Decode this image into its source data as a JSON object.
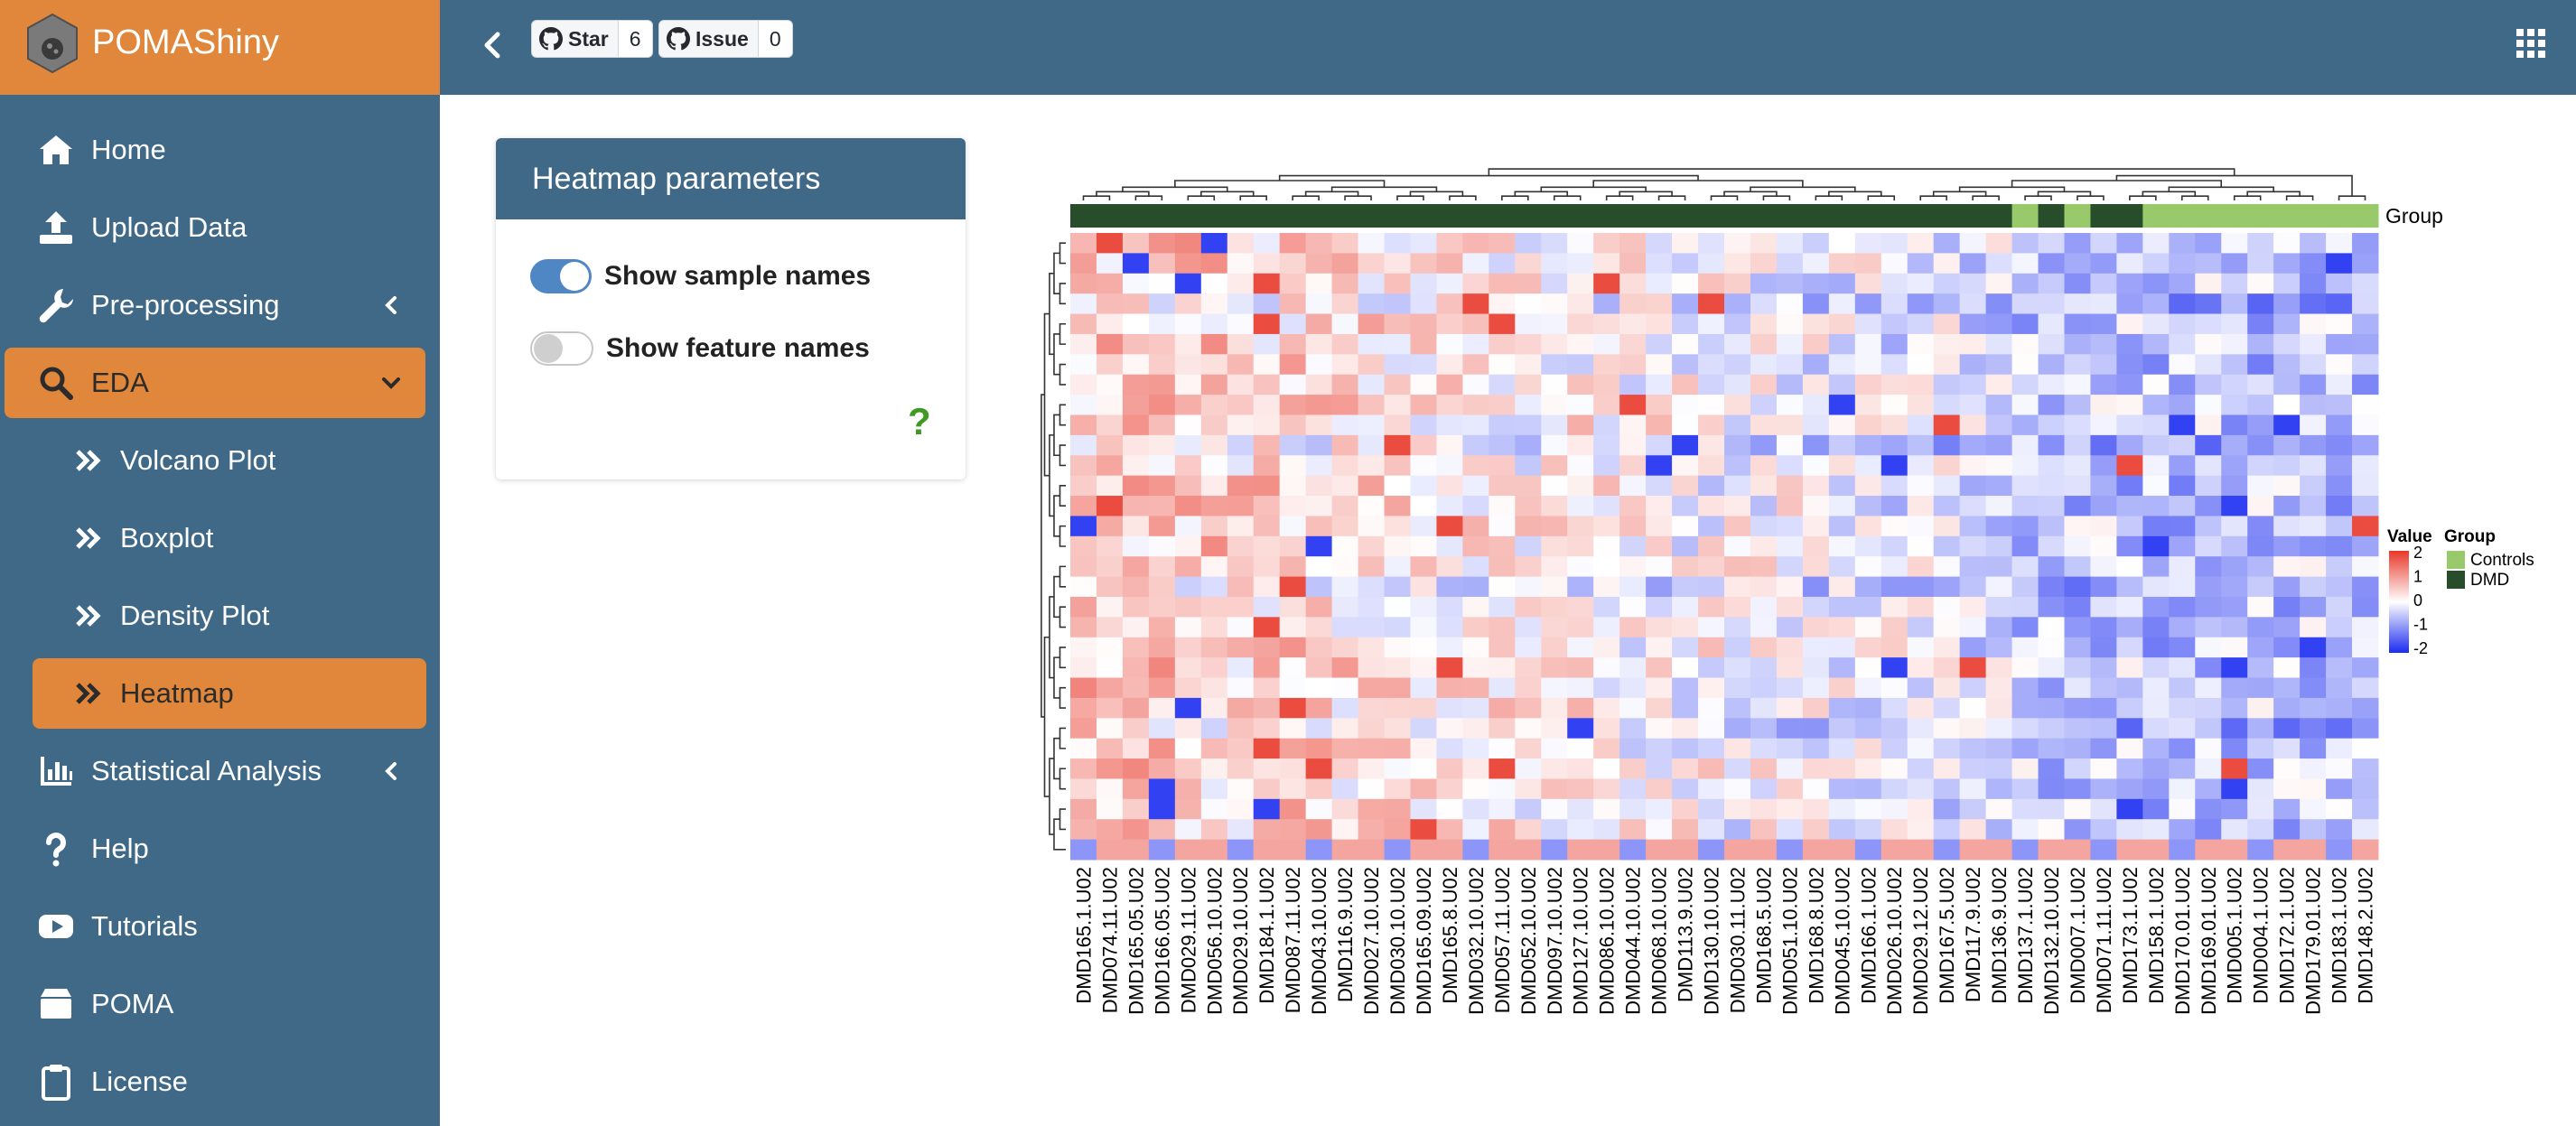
{
  "app": {
    "title": "POMAShiny",
    "logo_text": "POMA"
  },
  "navbar": {
    "star_label": "Star",
    "star_count": "6",
    "issue_label": "Issue",
    "issue_count": "0"
  },
  "sidebar": {
    "items": [
      {
        "label": "Home",
        "icon": "home-icon"
      },
      {
        "label": "Upload Data",
        "icon": "upload-icon"
      },
      {
        "label": "Pre-processing",
        "icon": "wrench-icon"
      },
      {
        "label": "EDA",
        "icon": "search-icon"
      },
      {
        "label": "Volcano Plot",
        "icon": "double-chevron-icon"
      },
      {
        "label": "Boxplot",
        "icon": "double-chevron-icon"
      },
      {
        "label": "Density Plot",
        "icon": "double-chevron-icon"
      },
      {
        "label": "Heatmap",
        "icon": "double-chevron-icon"
      },
      {
        "label": "Statistical Analysis",
        "icon": "bar-chart-icon"
      },
      {
        "label": "Help",
        "icon": "question-icon"
      },
      {
        "label": "Tutorials",
        "icon": "youtube-icon"
      },
      {
        "label": "POMA",
        "icon": "box-icon"
      },
      {
        "label": "License",
        "icon": "clipboard-icon"
      }
    ],
    "active_item": "Heatmap"
  },
  "params": {
    "title": "Heatmap parameters",
    "show_sample_names": {
      "label": "Show sample names",
      "value": true
    },
    "show_feature_names": {
      "label": "Show feature names",
      "value": false
    },
    "help": "?"
  },
  "chart_data": {
    "type": "heatmap",
    "samples": [
      "DMD165.1.U02",
      "DMD074.11.U02",
      "DMD165.05.U02",
      "DMD166.05.U02",
      "DMD029.11.U02",
      "DMD056.10.U02",
      "DMD029.10.U02",
      "DMD184.1.U02",
      "DMD087.11.U02",
      "DMD043.10.U02",
      "DMD116.9.U02",
      "DMD027.10.U02",
      "DMD030.10.U02",
      "DMD165.09.U02",
      "DMD165.8.U02",
      "DMD032.10.U02",
      "DMD057.11.U02",
      "DMD052.10.U02",
      "DMD097.10.U02",
      "DMD127.10.U02",
      "DMD086.10.U02",
      "DMD044.10.U02",
      "DMD068.10.U02",
      "DMD113.9.U02",
      "DMD130.10.U02",
      "DMD030.11.U02",
      "DMD168.5.U02",
      "DMD051.10.U02",
      "DMD168.8.U02",
      "DMD045.10.U02",
      "DMD166.1.U02",
      "DMD026.10.U02",
      "DMD029.12.U02",
      "DMD167.5.U02",
      "DMD117.9.U02",
      "DMD136.9.U02",
      "DMD137.1.U02",
      "DMD132.10.U02",
      "DMD007.1.U02",
      "DMD071.11.U02",
      "DMD173.1.U02",
      "DMD158.1.U02",
      "DMD170.01.U02",
      "DMD169.01.U02",
      "DMD005.1.U02",
      "DMD004.1.U02",
      "DMD172.1.U02",
      "DMD179.01.U02",
      "DMD183.1.U02",
      "DMD148.2.U02"
    ],
    "groups": [
      "DMD",
      "DMD",
      "DMD",
      "DMD",
      "DMD",
      "DMD",
      "DMD",
      "DMD",
      "DMD",
      "DMD",
      "DMD",
      "DMD",
      "DMD",
      "DMD",
      "DMD",
      "DMD",
      "DMD",
      "DMD",
      "DMD",
      "DMD",
      "DMD",
      "DMD",
      "DMD",
      "DMD",
      "DMD",
      "DMD",
      "DMD",
      "DMD",
      "DMD",
      "DMD",
      "DMD",
      "DMD",
      "DMD",
      "DMD",
      "DMD",
      "DMD",
      "Controls",
      "DMD",
      "Controls",
      "DMD",
      "DMD",
      "Controls",
      "Controls",
      "Controls",
      "Controls",
      "Controls",
      "Controls",
      "Controls",
      "Controls",
      "Controls"
    ],
    "n_features": 31,
    "group_label": "Group",
    "legend": {
      "value_title": "Value",
      "value_ticks": [
        "2",
        "1",
        "0",
        "-1",
        "-2"
      ],
      "group_title": "Group",
      "group_entries": [
        "Controls",
        "DMD"
      ]
    },
    "colors": {
      "high": "#e8382a",
      "mid": "#ffffff",
      "low": "#1b2cf0",
      "controls": "#98c96b",
      "dmd": "#284d2b"
    },
    "value_range": [
      -2,
      2
    ],
    "cluster_column_split": 36
  }
}
